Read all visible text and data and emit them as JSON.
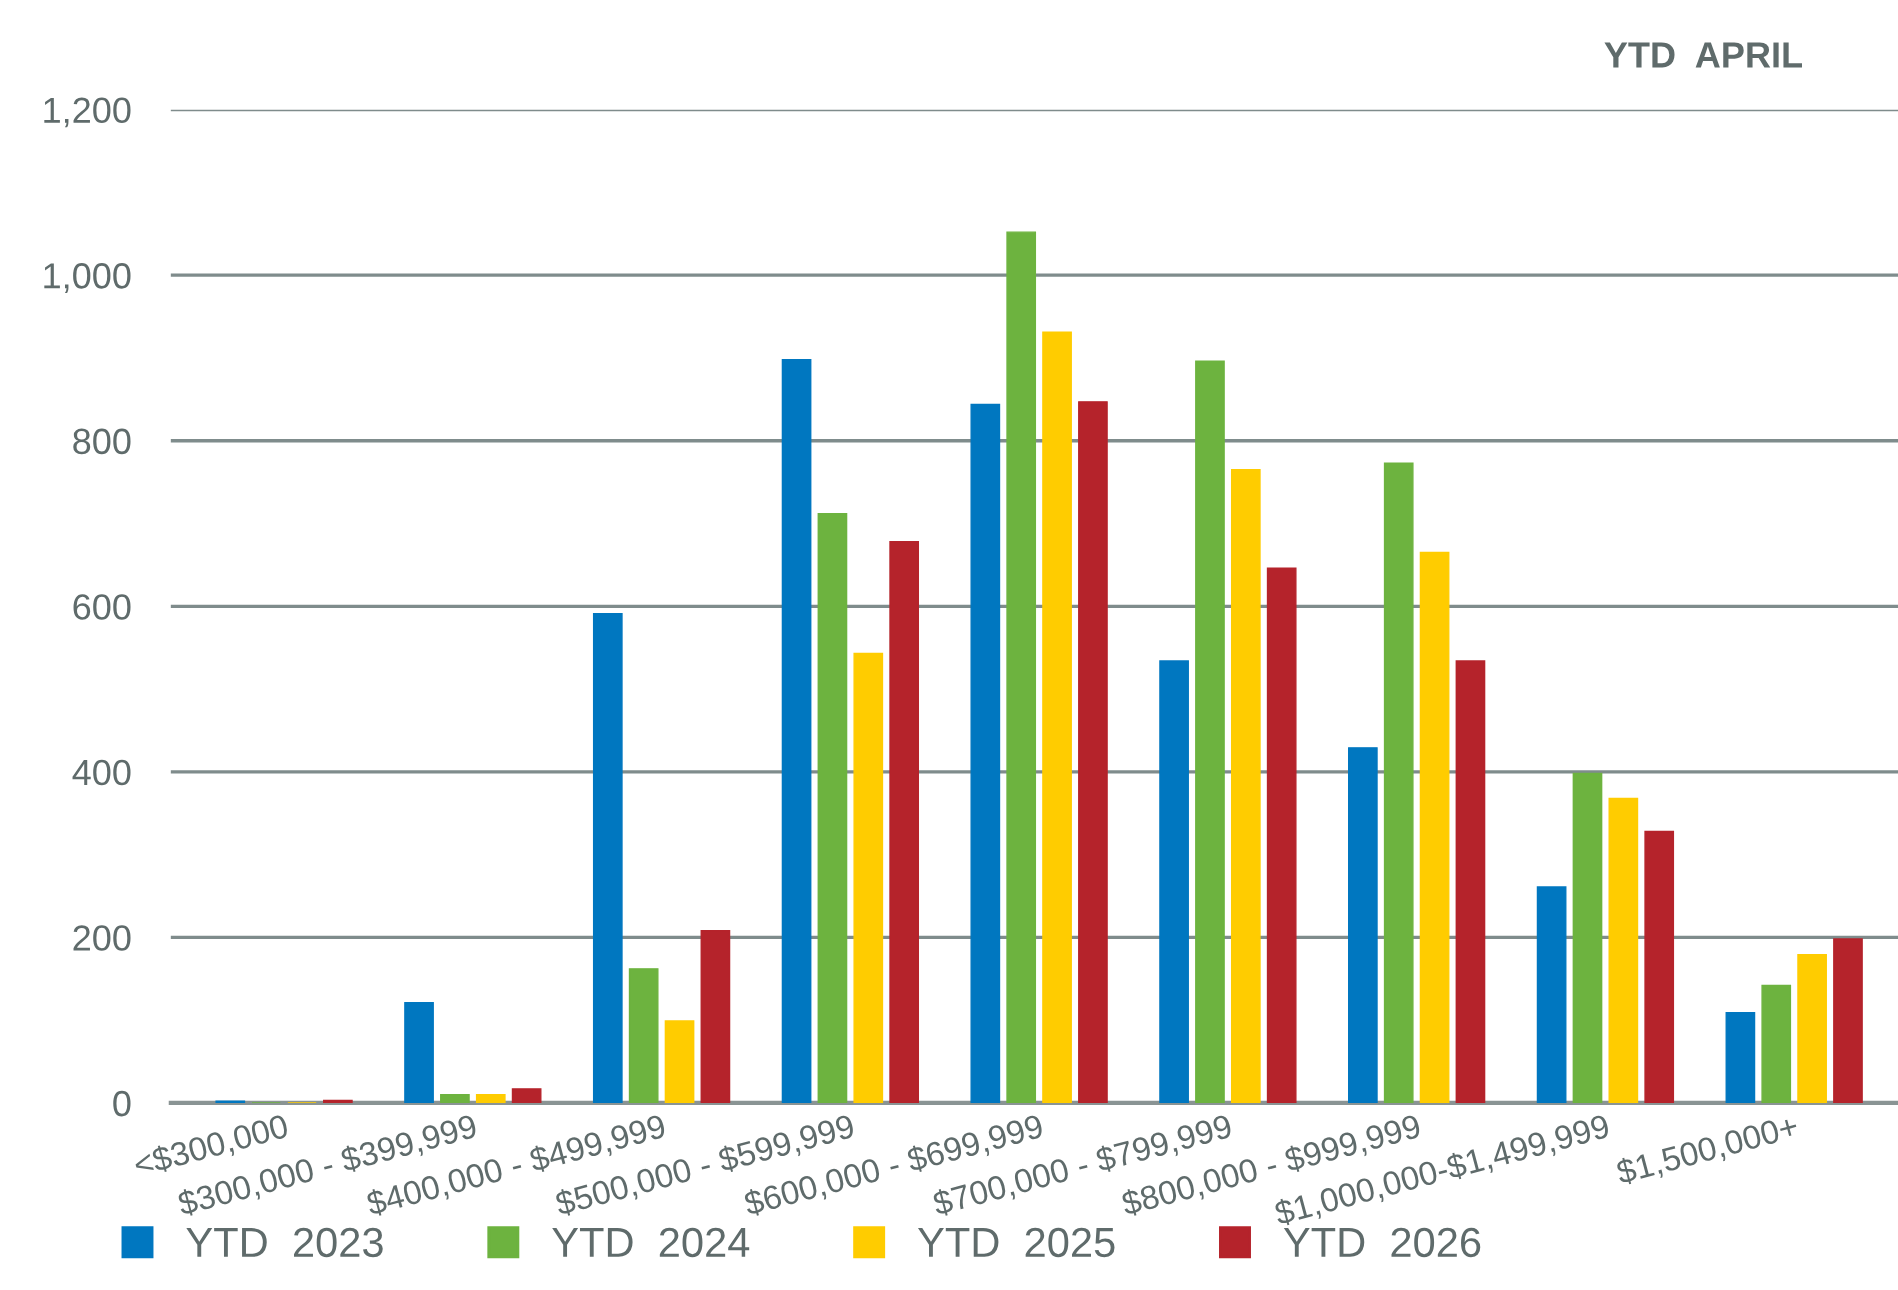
{
  "chart_data": {
    "type": "bar",
    "title": "YTD  APRIL",
    "categories": [
      "<$300,000",
      "$300,000 - $399,999",
      "$400,000 - $499,999",
      "$500,000 - $599,999",
      "$600,000 - $699,999",
      "$700,000 - $799,999",
      "$800,000 - $999,999",
      "$1,000,000-$1,499,999",
      "$1,500,000+"
    ],
    "series": [
      {
        "name": "YTD  2023",
        "color": "#0077c0",
        "values": [
          2,
          121,
          591,
          898,
          844,
          534,
          429,
          261,
          109
        ]
      },
      {
        "name": "YTD  2024",
        "color": "#6db33f",
        "values": [
          0,
          10,
          162,
          712,
          1052,
          896,
          773,
          398,
          142
        ]
      },
      {
        "name": "YTD  2025",
        "color": "#ffcc00",
        "values": [
          0,
          10,
          99,
          543,
          931,
          765,
          665,
          368,
          179
        ]
      },
      {
        "name": "YTD  2026",
        "color": "#b5232b",
        "values": [
          3,
          17,
          208,
          678,
          847,
          646,
          534,
          328,
          198
        ]
      }
    ],
    "ylim": [
      0,
      1200
    ],
    "yticks": [
      0,
      200,
      400,
      600,
      800,
      {
        "value": 1000,
        "label": "1,000"
      },
      {
        "value": 1200,
        "label": "1,200"
      }
    ],
    "grid": "y",
    "legend": "bottom"
  }
}
